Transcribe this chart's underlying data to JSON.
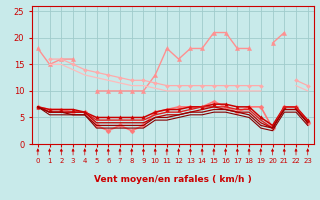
{
  "xlabel": "Vent moyen/en rafales ( km/h )",
  "x": [
    0,
    1,
    2,
    3,
    4,
    5,
    6,
    7,
    8,
    9,
    10,
    11,
    12,
    13,
    14,
    15,
    16,
    17,
    18,
    19,
    20,
    21,
    22,
    23
  ],
  "bg_color": "#c8eaea",
  "grid_color": "#a0cccc",
  "ylim": [
    0,
    26
  ],
  "yticks": [
    0,
    5,
    10,
    15,
    20,
    25
  ],
  "series": [
    {
      "color": "#ff9090",
      "values": [
        18,
        15,
        16,
        16,
        null,
        10,
        10,
        10,
        10,
        10,
        13,
        18,
        16,
        18,
        18,
        21,
        21,
        18,
        18,
        null,
        19,
        21,
        null,
        null
      ],
      "marker": "^",
      "ms": 3.0,
      "lw": 1.0
    },
    {
      "color": "#ffaaaa",
      "values": [
        null,
        16,
        16,
        15,
        14,
        13.5,
        13,
        12.5,
        12,
        12,
        11.5,
        11,
        11,
        11,
        11,
        11,
        11,
        11,
        11,
        11,
        null,
        null,
        12,
        11
      ],
      "marker": "D",
      "ms": 2.0,
      "lw": 0.9
    },
    {
      "color": "#ffbbbb",
      "values": [
        null,
        15,
        15,
        14,
        13,
        12.5,
        12,
        11.5,
        11,
        11,
        10.5,
        10,
        10,
        10,
        10,
        10,
        10,
        10,
        10,
        10,
        null,
        null,
        11,
        10
      ],
      "marker": null,
      "ms": 0,
      "lw": 0.9
    },
    {
      "color": "#ff7777",
      "values": [
        7,
        6.5,
        6.5,
        6,
        6,
        3.5,
        2.5,
        3.5,
        2.5,
        3.5,
        6,
        6.5,
        7,
        7,
        7,
        8,
        7,
        6,
        7,
        7,
        3,
        7,
        7,
        4
      ],
      "marker": "D",
      "ms": 2.5,
      "lw": 1.2
    },
    {
      "color": "#cc0000",
      "values": [
        7,
        6.5,
        6.5,
        6.5,
        6,
        5,
        5,
        5,
        5,
        5,
        6,
        6.5,
        6.5,
        7,
        7,
        7.5,
        7.5,
        7,
        7,
        5,
        3.5,
        7,
        7,
        4.5
      ],
      "marker": "^",
      "ms": 2.5,
      "lw": 1.1
    },
    {
      "color": "#dd2222",
      "values": [
        7,
        6,
        6,
        6,
        6,
        4.5,
        4.5,
        4.5,
        4.5,
        4.5,
        5.5,
        6,
        6,
        6.5,
        7,
        7,
        7,
        6.5,
        6.5,
        4.5,
        3,
        7,
        7,
        4
      ],
      "marker": null,
      "ms": 0,
      "lw": 1.0
    },
    {
      "color": "#bb0000",
      "values": [
        7,
        6,
        6,
        6,
        6,
        4,
        4,
        4,
        4,
        4,
        5,
        5.5,
        5.5,
        6,
        6.5,
        7,
        6.5,
        6,
        6,
        4,
        3,
        6.5,
        6.5,
        4
      ],
      "marker": null,
      "ms": 0,
      "lw": 0.9
    },
    {
      "color": "#990000",
      "values": [
        7,
        6,
        6,
        5.5,
        5.5,
        3.5,
        3.5,
        3.5,
        3.5,
        3.5,
        5,
        5,
        5.5,
        6,
        6,
        6.5,
        6.5,
        6,
        5.5,
        3.5,
        3,
        6.5,
        6.5,
        4
      ],
      "marker": null,
      "ms": 0,
      "lw": 0.9
    },
    {
      "color": "#880000",
      "values": [
        7,
        5.5,
        5.5,
        5.5,
        5.5,
        3,
        3,
        3,
        3,
        3,
        4.5,
        4.5,
        5,
        5.5,
        5.5,
        6,
        6,
        5.5,
        5,
        3,
        2.5,
        6,
        6,
        3.5
      ],
      "marker": null,
      "ms": 0,
      "lw": 0.8
    }
  ],
  "arrow_color": "#cc0000"
}
